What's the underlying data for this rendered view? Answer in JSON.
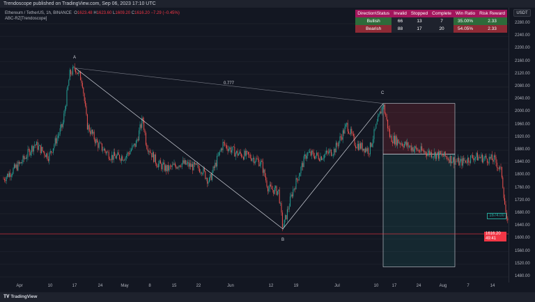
{
  "header": {
    "published": "Trendoscope published on TradingView.com, Sep 06, 2023 17:10 UTC"
  },
  "legend": {
    "symbol": "Ethereum / TetherUS, 1h, BINANCE",
    "o_label": "O",
    "o": "1623.48",
    "h_label": "H",
    "h": "1623.60",
    "l_label": "L",
    "l": "1609.20",
    "c_label": "C",
    "c": "1616.20",
    "change": "−7.29 (−0.45%)",
    "indicator": "ABC-RZ[Trendoscope]"
  },
  "currency": "USDT",
  "stats_table": {
    "headers": [
      "Direction\\Status",
      "Invalid",
      "Stopped",
      "Complete",
      "Win Ratio",
      "Risk Reward"
    ],
    "rows": [
      [
        "Bullish",
        "66",
        "13",
        "7",
        "35.00%",
        "2.33"
      ],
      [
        "Bearish",
        "88",
        "17",
        "20",
        "54.05%",
        "2.33"
      ]
    ],
    "colors": {
      "header": "#a3155c",
      "bullish": "#2e6b3a",
      "bearish": "#8e2a35"
    }
  },
  "chart_data": {
    "type": "candlestick",
    "price_ticks": [
      "2280.00",
      "2240.00",
      "2200.00",
      "2160.00",
      "2120.00",
      "2080.00",
      "2040.00",
      "2000.00",
      "1960.00",
      "1920.00",
      "1880.00",
      "1840.00",
      "1800.00",
      "1760.00",
      "1720.00",
      "1680.00",
      "1640.00",
      "1600.00",
      "1560.00",
      "1520.00",
      "1480.00"
    ],
    "time_ticks": [
      "Apr",
      "10",
      "17",
      "24",
      "May",
      "8",
      "15",
      "22",
      "Jun",
      "12",
      "19",
      "Jul",
      "10",
      "17",
      "24",
      "Aug",
      "7",
      "14"
    ],
    "ylim": [
      1460,
      2290
    ],
    "pattern_points": [
      {
        "label": "A",
        "price": 2140
      },
      {
        "label": "B",
        "price": 1632
      },
      {
        "label": "C",
        "price": 2028
      }
    ],
    "ratio_label": "0.777",
    "entry": 1868,
    "target": 1512,
    "last_price": "1616.20",
    "countdown": "49:41",
    "marker_price": "1674.00",
    "colors": {
      "up": "#26a69a",
      "down": "#ef5350"
    }
  },
  "footer": {
    "brand": "TradingView"
  }
}
